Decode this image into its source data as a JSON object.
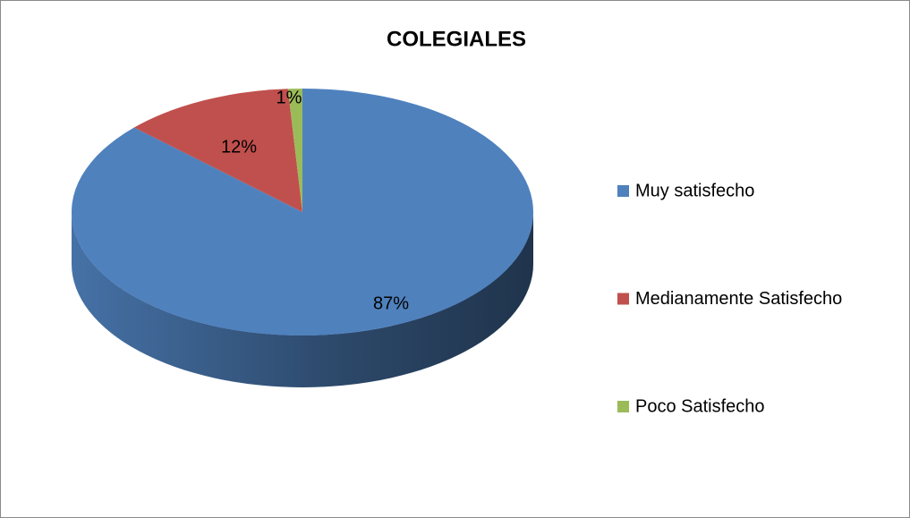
{
  "chart_data": {
    "type": "pie",
    "title": "COLEGIALES",
    "categories": [
      "Muy satisfecho",
      "Medianamente Satisfecho",
      "Poco Satisfecho"
    ],
    "values": [
      87,
      12,
      1
    ],
    "value_labels": [
      "87%",
      "12%",
      "1%"
    ],
    "colors": [
      "#4f81bd",
      "#c0504d",
      "#9bbb59"
    ],
    "legend": "right"
  }
}
